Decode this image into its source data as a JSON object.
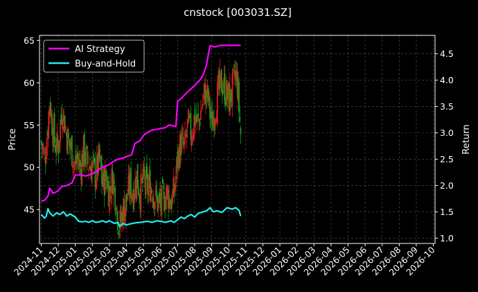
{
  "chart_data": {
    "type": "candlestick-line",
    "title": "cnstock [003031.SZ]",
    "xlabel": "",
    "ylabel_left": "Price",
    "ylabel_right": "Return",
    "grid": true,
    "legend_position": "top-left",
    "colors": {
      "background": "#000000",
      "strategy": "#ff00ff",
      "buyhold": "#22eeee",
      "candle_up": "#d42020",
      "candle_down": "#1a9a1a",
      "grid": "#555555",
      "axes": "#ffffff"
    },
    "x_ticks": [
      "2024-11",
      "2024-12",
      "2025-01",
      "2025-02",
      "2025-03",
      "2025-04",
      "2025-05",
      "2025-06",
      "2025-07",
      "2025-08",
      "2025-09",
      "2025-10",
      "2025-11",
      "2025-12",
      "2026-01",
      "2026-02",
      "2026-03",
      "2026-04",
      "2026-05",
      "2026-06",
      "2026-07",
      "2026-08",
      "2026-09",
      "2026-10"
    ],
    "x_range": [
      -0.1,
      23.1
    ],
    "ylim_left": [
      41,
      65.6
    ],
    "yticks_left": [
      45,
      50,
      55,
      60,
      65
    ],
    "ylim_right": [
      0.9,
      4.85
    ],
    "yticks_right": [
      1.0,
      1.5,
      2.0,
      2.5,
      3.0,
      3.5,
      4.0,
      4.5
    ],
    "series": [
      {
        "name": "AI Strategy",
        "axis": "right",
        "points": [
          [
            0.0,
            1.7
          ],
          [
            0.2,
            1.72
          ],
          [
            0.4,
            1.8
          ],
          [
            0.5,
            1.95
          ],
          [
            0.7,
            1.85
          ],
          [
            1.0,
            1.9
          ],
          [
            1.2,
            1.98
          ],
          [
            1.5,
            2.0
          ],
          [
            1.8,
            2.05
          ],
          [
            2.0,
            2.2
          ],
          [
            2.3,
            2.2
          ],
          [
            2.6,
            2.18
          ],
          [
            3.0,
            2.22
          ],
          [
            3.3,
            2.28
          ],
          [
            3.6,
            2.35
          ],
          [
            4.0,
            2.4
          ],
          [
            4.2,
            2.45
          ],
          [
            4.5,
            2.5
          ],
          [
            4.8,
            2.52
          ],
          [
            5.0,
            2.55
          ],
          [
            5.3,
            2.58
          ],
          [
            5.5,
            2.8
          ],
          [
            5.8,
            2.85
          ],
          [
            6.0,
            2.95
          ],
          [
            6.2,
            3.0
          ],
          [
            6.5,
            3.05
          ],
          [
            7.0,
            3.08
          ],
          [
            7.3,
            3.1
          ],
          [
            7.5,
            3.15
          ],
          [
            7.9,
            3.12
          ],
          [
            8.0,
            3.6
          ],
          [
            8.2,
            3.65
          ],
          [
            8.5,
            3.75
          ],
          [
            9.0,
            3.9
          ],
          [
            9.3,
            4.0
          ],
          [
            9.5,
            4.1
          ],
          [
            9.7,
            4.3
          ],
          [
            9.9,
            4.65
          ],
          [
            10.2,
            4.63
          ],
          [
            10.5,
            4.66
          ],
          [
            11.0,
            4.66
          ],
          [
            11.7,
            4.66
          ]
        ]
      },
      {
        "name": "Buy-and-Hold",
        "axis": "right",
        "points": [
          [
            0.0,
            1.45
          ],
          [
            0.2,
            1.38
          ],
          [
            0.3,
            1.42
          ],
          [
            0.4,
            1.56
          ],
          [
            0.5,
            1.48
          ],
          [
            0.7,
            1.42
          ],
          [
            0.9,
            1.48
          ],
          [
            1.1,
            1.45
          ],
          [
            1.3,
            1.5
          ],
          [
            1.5,
            1.42
          ],
          [
            1.7,
            1.46
          ],
          [
            2.0,
            1.4
          ],
          [
            2.2,
            1.32
          ],
          [
            2.4,
            1.31
          ],
          [
            2.6,
            1.32
          ],
          [
            2.8,
            1.3
          ],
          [
            3.0,
            1.33
          ],
          [
            3.2,
            1.3
          ],
          [
            3.4,
            1.31
          ],
          [
            3.6,
            1.33
          ],
          [
            3.8,
            1.3
          ],
          [
            4.0,
            1.33
          ],
          [
            4.3,
            1.28
          ],
          [
            4.5,
            1.3
          ],
          [
            4.6,
            1.22
          ],
          [
            4.8,
            1.28
          ],
          [
            5.0,
            1.25
          ],
          [
            5.2,
            1.27
          ],
          [
            5.5,
            1.29
          ],
          [
            5.8,
            1.3
          ],
          [
            6.0,
            1.31
          ],
          [
            6.2,
            1.32
          ],
          [
            6.5,
            1.3
          ],
          [
            6.8,
            1.33
          ],
          [
            7.0,
            1.32
          ],
          [
            7.3,
            1.3
          ],
          [
            7.6,
            1.33
          ],
          [
            7.8,
            1.3
          ],
          [
            8.0,
            1.35
          ],
          [
            8.2,
            1.4
          ],
          [
            8.4,
            1.37
          ],
          [
            8.6,
            1.42
          ],
          [
            8.8,
            1.45
          ],
          [
            9.0,
            1.4
          ],
          [
            9.2,
            1.47
          ],
          [
            9.5,
            1.5
          ],
          [
            9.7,
            1.52
          ],
          [
            9.9,
            1.58
          ],
          [
            10.1,
            1.5
          ],
          [
            10.3,
            1.52
          ],
          [
            10.6,
            1.49
          ],
          [
            10.9,
            1.58
          ],
          [
            11.2,
            1.55
          ],
          [
            11.4,
            1.58
          ],
          [
            11.6,
            1.53
          ],
          [
            11.7,
            1.42
          ]
        ]
      }
    ],
    "price_path": [
      [
        0.0,
        53
      ],
      [
        0.2,
        51
      ],
      [
        0.35,
        54
      ],
      [
        0.5,
        58
      ],
      [
        0.65,
        55
      ],
      [
        0.8,
        53
      ],
      [
        1.0,
        52
      ],
      [
        1.1,
        55
      ],
      [
        1.25,
        57
      ],
      [
        1.4,
        55
      ],
      [
        1.6,
        53
      ],
      [
        1.8,
        52
      ],
      [
        2.0,
        50
      ],
      [
        2.1,
        51
      ],
      [
        2.3,
        50
      ],
      [
        2.5,
        52
      ],
      [
        2.7,
        50.5
      ],
      [
        3.0,
        50
      ],
      [
        3.2,
        49
      ],
      [
        3.4,
        51
      ],
      [
        3.6,
        48
      ],
      [
        3.8,
        49
      ],
      [
        4.0,
        47
      ],
      [
        4.2,
        49
      ],
      [
        4.4,
        46
      ],
      [
        4.5,
        44
      ],
      [
        4.6,
        43
      ],
      [
        4.8,
        45
      ],
      [
        5.0,
        46
      ],
      [
        5.2,
        48
      ],
      [
        5.4,
        47
      ],
      [
        5.6,
        49
      ],
      [
        5.8,
        47
      ],
      [
        6.0,
        48.5
      ],
      [
        6.2,
        47.5
      ],
      [
        6.4,
        48
      ],
      [
        6.6,
        47
      ],
      [
        6.8,
        46
      ],
      [
        7.0,
        45.5
      ],
      [
        7.2,
        46.5
      ],
      [
        7.4,
        47
      ],
      [
        7.6,
        46
      ],
      [
        7.8,
        47
      ],
      [
        8.0,
        51
      ],
      [
        8.2,
        53
      ],
      [
        8.4,
        52
      ],
      [
        8.6,
        55
      ],
      [
        8.8,
        54
      ],
      [
        9.0,
        56
      ],
      [
        9.2,
        55
      ],
      [
        9.4,
        57
      ],
      [
        9.6,
        59
      ],
      [
        9.8,
        58
      ],
      [
        10.0,
        55
      ],
      [
        10.2,
        57
      ],
      [
        10.4,
        59
      ],
      [
        10.6,
        60
      ],
      [
        10.8,
        59
      ],
      [
        11.0,
        58
      ],
      [
        11.2,
        59
      ],
      [
        11.4,
        61
      ],
      [
        11.5,
        60
      ],
      [
        11.6,
        57
      ],
      [
        11.7,
        54
      ]
    ]
  }
}
